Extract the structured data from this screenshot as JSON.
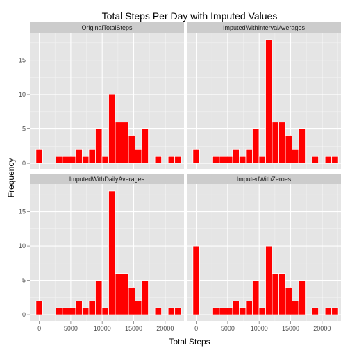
{
  "chart_data": {
    "type": "bar",
    "title": "Total Steps Per Day with Imputed Values",
    "xlabel": "Total Steps",
    "ylabel": "Frequency",
    "xlim": [
      -1500,
      23000
    ],
    "ylim": [
      -0.9,
      19
    ],
    "x_ticks": [
      0,
      5000,
      10000,
      15000,
      20000
    ],
    "x_tick_labels": [
      "0",
      "5000",
      "10000",
      "15000",
      "20000"
    ],
    "y_ticks": [
      0,
      5,
      10,
      15
    ],
    "y_tick_labels": [
      "0",
      "5",
      "10",
      "15"
    ],
    "bin_width": 1050,
    "bin_centers": [
      0,
      1050,
      2100,
      3150,
      4200,
      5250,
      6300,
      7350,
      8400,
      9450,
      10500,
      11550,
      12600,
      13650,
      14700,
      15750,
      16800,
      17850,
      18900,
      19950,
      21000,
      22050
    ],
    "bar_color": "#ff0000",
    "panel_background": "#e5e5e5",
    "strip_background": "#cccccc",
    "panels": [
      {
        "name": "OriginalTotalSteps",
        "values": [
          2,
          0,
          0,
          1,
          1,
          1,
          2,
          1,
          2,
          5,
          1,
          10,
          6,
          6,
          4,
          2,
          5,
          0,
          1,
          0,
          1,
          1
        ]
      },
      {
        "name": "ImputedWithIntervalAverages",
        "values": [
          2,
          0,
          0,
          1,
          1,
          1,
          2,
          1,
          2,
          5,
          1,
          18,
          6,
          6,
          4,
          2,
          5,
          0,
          1,
          0,
          1,
          1
        ]
      },
      {
        "name": "ImputedWithDailyAverages",
        "values": [
          2,
          0,
          0,
          1,
          1,
          1,
          2,
          1,
          2,
          5,
          1,
          18,
          6,
          6,
          4,
          2,
          5,
          0,
          1,
          0,
          1,
          1
        ]
      },
      {
        "name": "ImputedWithZeroes",
        "values": [
          10,
          0,
          0,
          1,
          1,
          1,
          2,
          1,
          2,
          5,
          1,
          10,
          6,
          6,
          4,
          2,
          5,
          0,
          1,
          0,
          1,
          1
        ]
      }
    ]
  }
}
